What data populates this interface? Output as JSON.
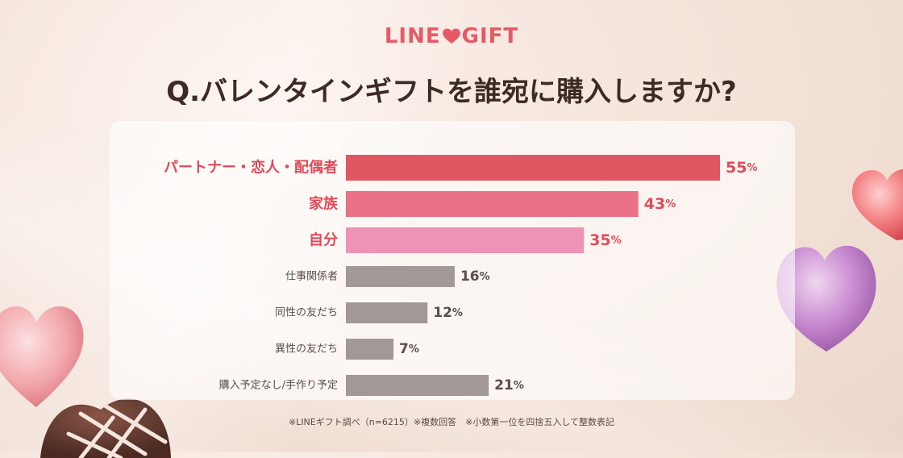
{
  "logo": {
    "left": "LINE",
    "right": "GIFT",
    "heart_icon": "heart-icon"
  },
  "title": "Q.バレンタインギフトを誰宛に購入しますか?",
  "footnote": "※LINEギフト調べ（n=6215）※複数回答　※小数第一位を四捨五入して整数表記",
  "colors": {
    "accent": "#e65a66",
    "bar_primary": "#e05662",
    "bar_secondary": "#ea7186",
    "bar_tertiary": "#ee93b6",
    "bar_gray": "#a29897",
    "label_highlight": "#e14a58",
    "label_gray": "#5a4e4c"
  },
  "chart_data": {
    "type": "bar",
    "orientation": "horizontal",
    "categories": [
      "パートナー・恋人・配偶者",
      "家族",
      "自分",
      "仕事関係者",
      "同性の友だち",
      "異性の友だち",
      "購入予定なし/手作り予定"
    ],
    "values": [
      55,
      43,
      35,
      16,
      12,
      7,
      21
    ],
    "value_suffix": "%",
    "highlighted": [
      true,
      true,
      true,
      false,
      false,
      false,
      false
    ],
    "xlim": [
      0,
      55
    ],
    "grid": false,
    "legend": "none"
  }
}
